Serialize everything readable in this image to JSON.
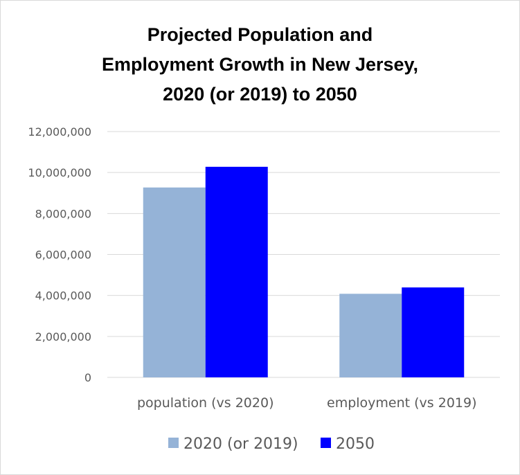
{
  "chart_data": {
    "type": "bar",
    "title_lines": [
      "Projected Population and",
      "Employment Growth in New Jersey,",
      "2020 (or 2019) to 2050"
    ],
    "categories": [
      "population (vs 2020)",
      "employment (vs 2019)"
    ],
    "series": [
      {
        "name": "2020 (or 2019)",
        "color": "#95b3d7",
        "values": [
          9270000,
          4080000
        ]
      },
      {
        "name": "2050",
        "color": "#0000ff",
        "values": [
          10280000,
          4390000
        ]
      }
    ],
    "ylim": [
      0,
      12000000
    ],
    "yticks": [
      "0",
      "2,000,000",
      "4,000,000",
      "6,000,000",
      "8,000,000",
      "10,000,000",
      "12,000,000"
    ],
    "grid": true,
    "gridline_color": "#d9d9d9",
    "text_color": "#595959",
    "legend_position": "bottom"
  }
}
